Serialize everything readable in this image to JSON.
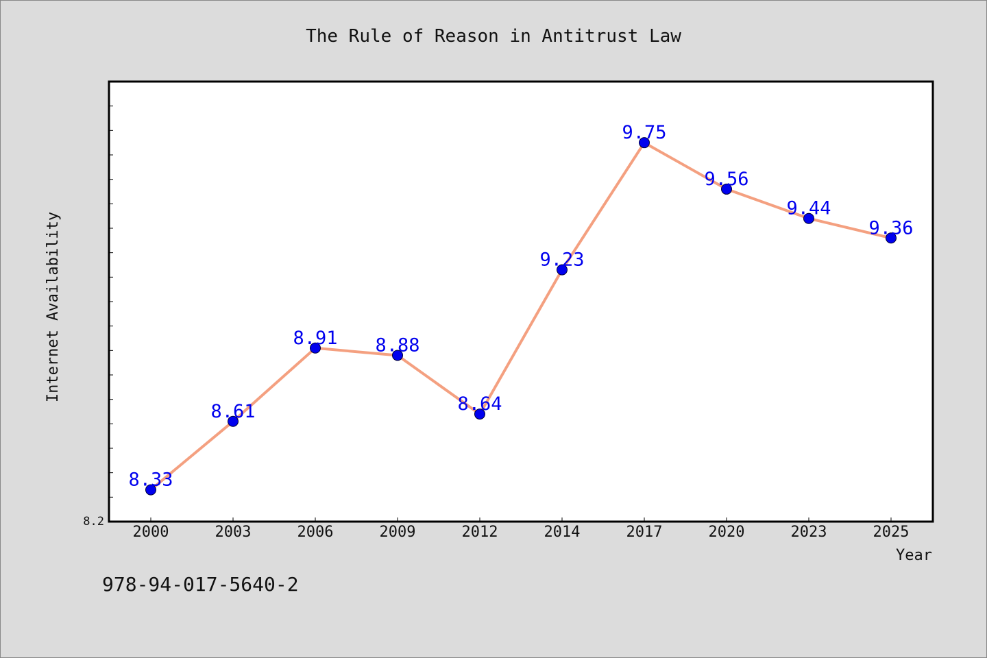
{
  "chart_data": {
    "type": "line",
    "title": "The Rule of Reason in Antitrust Law",
    "xlabel": "Year",
    "ylabel": "Internet Availability",
    "categories": [
      "2000",
      "2003",
      "2006",
      "2009",
      "2012",
      "2014",
      "2017",
      "2020",
      "2023",
      "2025"
    ],
    "values": [
      8.33,
      8.61,
      8.91,
      8.88,
      8.64,
      9.23,
      9.75,
      9.56,
      9.44,
      9.36
    ],
    "data_labels": [
      "8.33",
      "8.61",
      "8.91",
      "8.88",
      "8.64",
      "9.23",
      "9.75",
      "9.56",
      "9.44",
      "9.36"
    ],
    "ytick_labels": [
      "8.2"
    ],
    "ylim": [
      8.2,
      10.0
    ],
    "grid": false,
    "legend": "none",
    "colors": {
      "line": "#f4a080",
      "marker": "#0000ee",
      "label": "#0000ee",
      "plot_bg": "#ffffff",
      "figure_bg": "#dcdcdc"
    }
  },
  "footer": {
    "isbn": "978-94-017-5640-2"
  }
}
